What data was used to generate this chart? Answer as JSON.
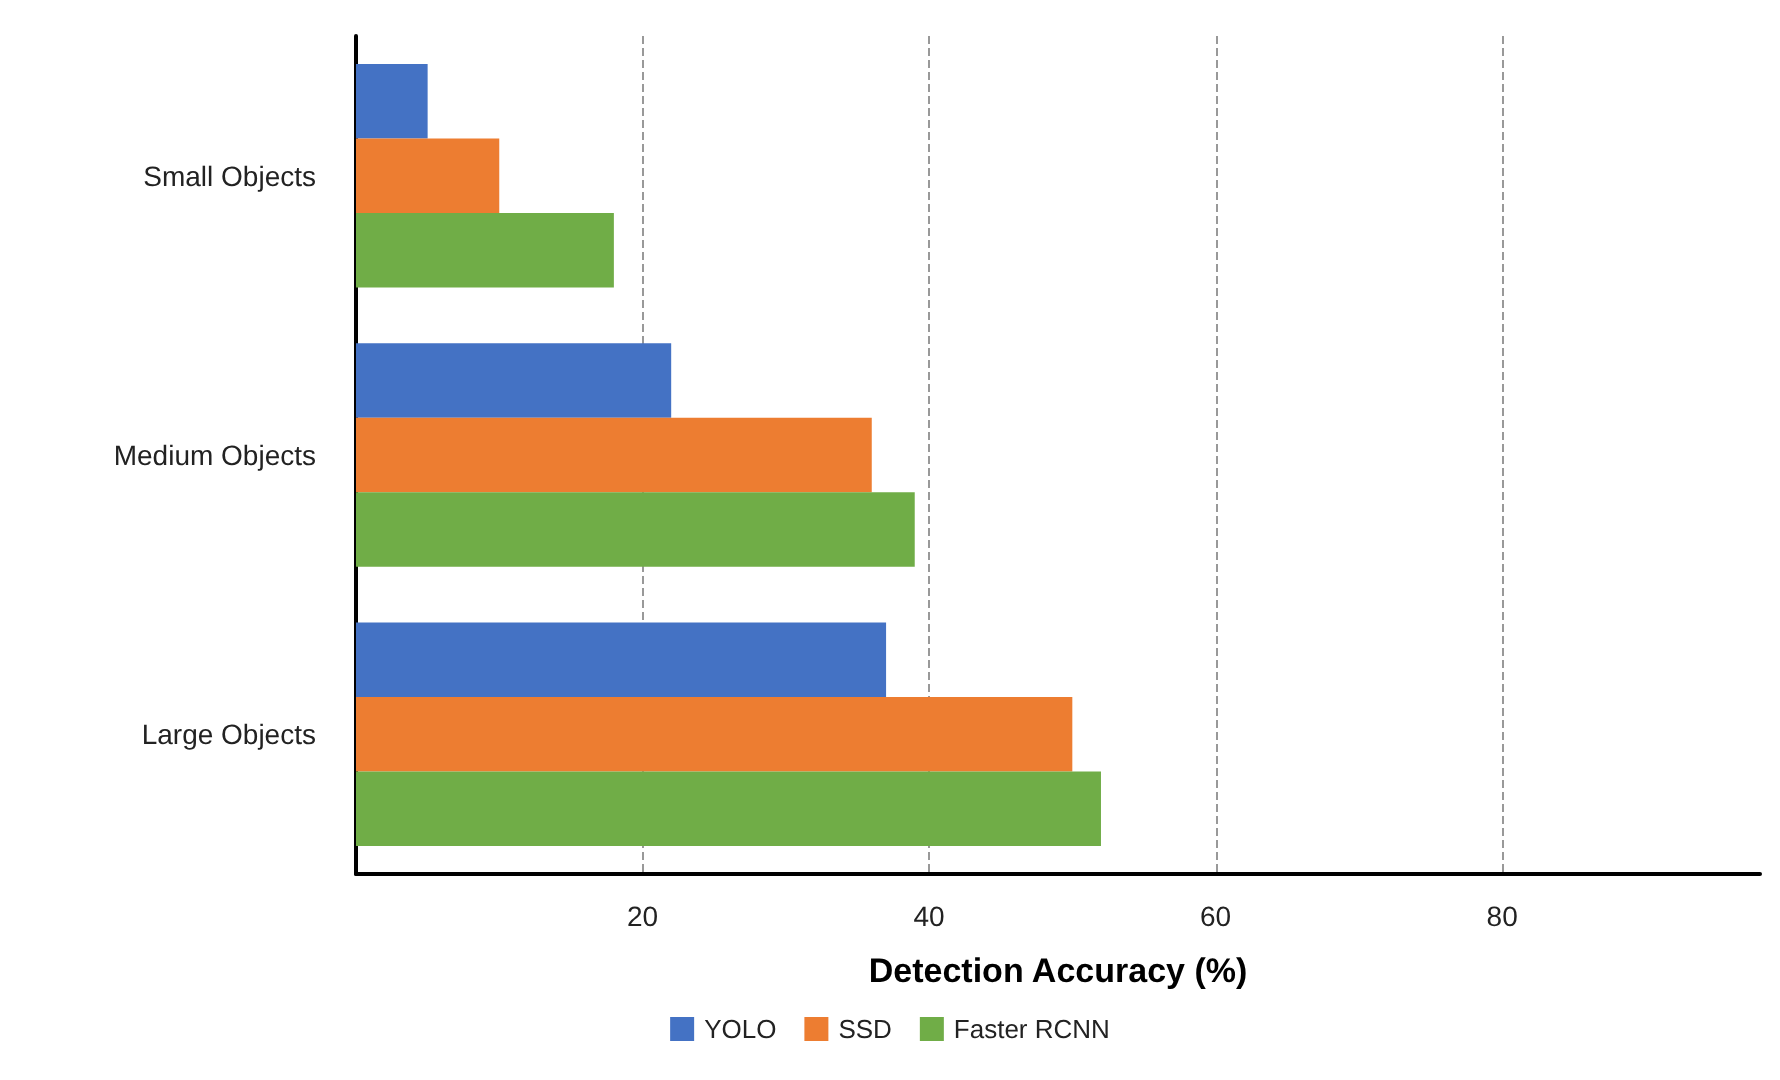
{
  "chart_data": {
    "type": "bar",
    "orientation": "horizontal",
    "xlabel": "Detection Accuracy (%)",
    "categories": [
      "Small Objects",
      "Medium Objects",
      "Large Objects"
    ],
    "series": [
      {
        "name": "YOLO",
        "color": "#4472c4",
        "values": [
          5,
          22,
          37
        ]
      },
      {
        "name": "SSD",
        "color": "#ed7d31",
        "values": [
          10,
          36,
          50
        ]
      },
      {
        "name": "Faster RCNN",
        "color": "#70ad47",
        "values": [
          18,
          39,
          52
        ]
      }
    ],
    "xlim": [
      0,
      98
    ],
    "xticks": [
      20,
      40,
      60,
      80
    ],
    "grid": "x",
    "legend": "bottom"
  }
}
